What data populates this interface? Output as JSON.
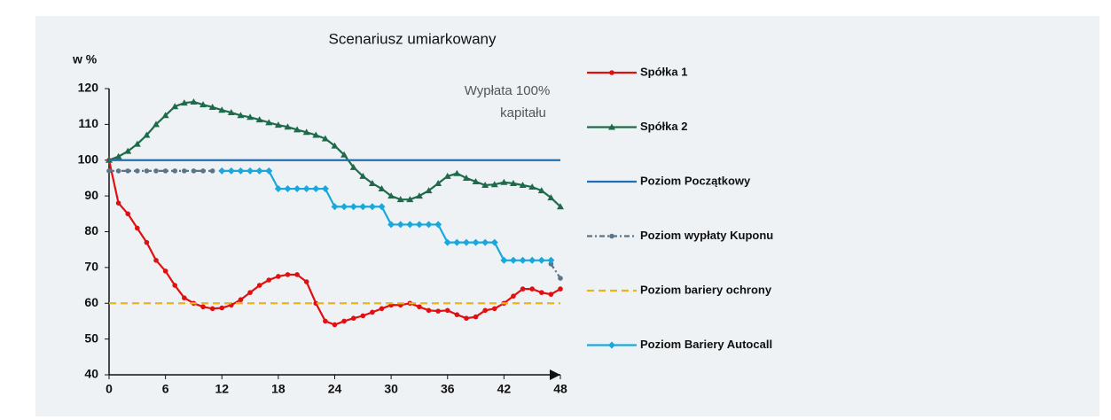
{
  "chart_data": {
    "type": "line",
    "title": "Scenariusz umiarkowany",
    "y_label": "w %",
    "annotation": [
      "Wypłata 100%",
      "kapitału"
    ],
    "x": [
      0,
      1,
      2,
      3,
      4,
      5,
      6,
      7,
      8,
      9,
      10,
      11,
      12,
      13,
      14,
      15,
      16,
      17,
      18,
      19,
      20,
      21,
      22,
      23,
      24,
      25,
      26,
      27,
      28,
      29,
      30,
      31,
      32,
      33,
      34,
      35,
      36,
      37,
      38,
      39,
      40,
      41,
      42,
      43,
      44,
      45,
      46,
      47,
      48
    ],
    "xlim": [
      0,
      48
    ],
    "xticks": [
      0,
      6,
      12,
      18,
      24,
      30,
      36,
      42,
      48
    ],
    "ylim": [
      40,
      120
    ],
    "yticks": [
      40,
      50,
      60,
      70,
      80,
      90,
      100,
      110,
      120
    ],
    "grid": false,
    "series": [
      {
        "name": "Spółka 1",
        "color": "#e01010",
        "marker": "circle",
        "dash": "solid",
        "values": [
          100,
          88,
          85,
          81,
          77,
          72,
          69,
          65,
          61.5,
          60,
          59,
          58.5,
          58.7,
          59.5,
          61,
          63,
          65,
          66.5,
          67.5,
          68,
          68,
          66,
          60,
          55,
          54,
          55,
          55.8,
          56.5,
          57.5,
          58.5,
          59.5,
          59.5,
          60,
          59,
          58,
          57.8,
          58,
          56.8,
          55.8,
          56.2,
          58,
          58.5,
          60,
          62,
          64,
          64,
          63,
          62.5,
          64
        ]
      },
      {
        "name": "Spółka 2",
        "color": "#1e6b4a",
        "marker": "triangle",
        "dash": "solid",
        "values": [
          100,
          101,
          102.5,
          104.5,
          107,
          110,
          112.5,
          115,
          116,
          116.3,
          115.5,
          114.8,
          114,
          113.3,
          112.5,
          112,
          111.3,
          110.5,
          109.8,
          109.3,
          108.5,
          107.8,
          107,
          106,
          104,
          101.5,
          98,
          95.5,
          93.5,
          92,
          90,
          89,
          89,
          90,
          91.5,
          93.5,
          95.5,
          96.3,
          95,
          94,
          93,
          93.2,
          93.8,
          93.5,
          93,
          92.5,
          91.5,
          89.5,
          87
        ]
      },
      {
        "name": "Poziom Początkowy",
        "color": "#1f6fb2",
        "marker": "none",
        "dash": "solid",
        "values": [
          100,
          100,
          100,
          100,
          100,
          100,
          100,
          100,
          100,
          100,
          100,
          100,
          100,
          100,
          100,
          100,
          100,
          100,
          100,
          100,
          100,
          100,
          100,
          100,
          100,
          100,
          100,
          100,
          100,
          100,
          100,
          100,
          100,
          100,
          100,
          100,
          100,
          100,
          100,
          100,
          100,
          100,
          100,
          100,
          100,
          100,
          100,
          100,
          100
        ]
      },
      {
        "name": "Poziom wypłaty Kuponu",
        "color": "#5a7488",
        "marker": "circle",
        "dash": "dashdot",
        "values": [
          97,
          97,
          97,
          97,
          97,
          97,
          97,
          97,
          97,
          97,
          97,
          97,
          null,
          null,
          null,
          null,
          null,
          null,
          null,
          null,
          null,
          null,
          null,
          null,
          null,
          null,
          null,
          null,
          null,
          null,
          null,
          null,
          null,
          null,
          null,
          null,
          null,
          null,
          null,
          null,
          null,
          null,
          null,
          null,
          null,
          null,
          null,
          71,
          67
        ]
      },
      {
        "name": "Poziom bariery ochrony",
        "color": "#e8b520",
        "marker": "none",
        "dash": "dashed",
        "values": [
          60,
          60,
          60,
          60,
          60,
          60,
          60,
          60,
          60,
          60,
          60,
          60,
          60,
          60,
          60,
          60,
          60,
          60,
          60,
          60,
          60,
          60,
          60,
          60,
          60,
          60,
          60,
          60,
          60,
          60,
          60,
          60,
          60,
          60,
          60,
          60,
          60,
          60,
          60,
          60,
          60,
          60,
          60,
          60,
          60,
          60,
          60,
          60,
          60
        ]
      },
      {
        "name": "Poziom Bariery Autocall",
        "color": "#1aa8dc",
        "marker": "diamond",
        "dash": "solid",
        "values": [
          null,
          null,
          null,
          null,
          null,
          null,
          null,
          null,
          null,
          null,
          null,
          null,
          97,
          97,
          97,
          97,
          97,
          97,
          92,
          92,
          92,
          92,
          92,
          92,
          87,
          87,
          87,
          87,
          87,
          87,
          82,
          82,
          82,
          82,
          82,
          82,
          77,
          77,
          77,
          77,
          77,
          77,
          72,
          72,
          72,
          72,
          72,
          72,
          null
        ]
      }
    ]
  }
}
